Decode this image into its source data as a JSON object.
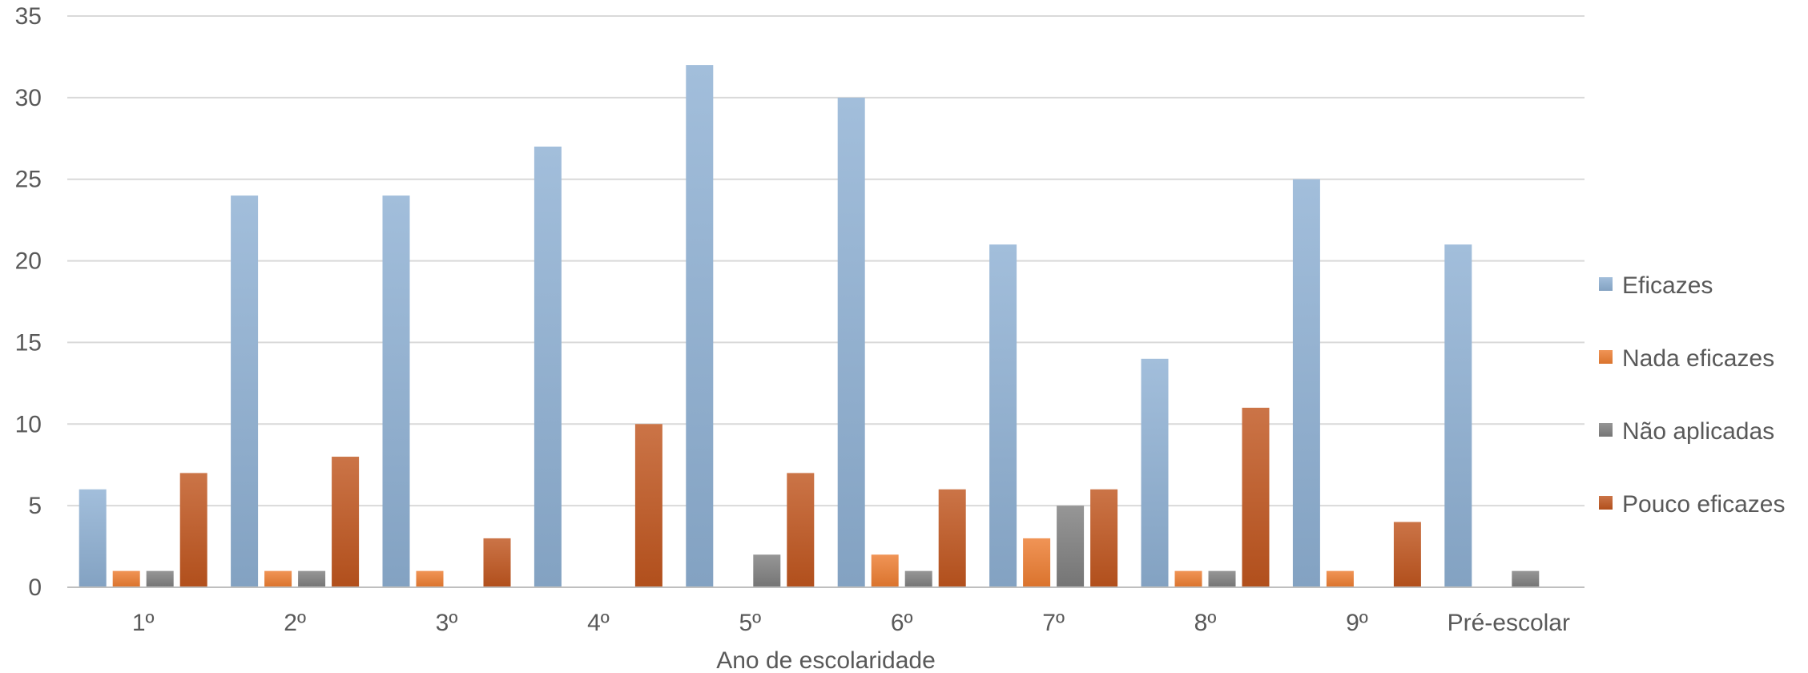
{
  "chart_data": {
    "type": "bar",
    "title": "",
    "xlabel": "Ano de escolaridade",
    "ylabel": "",
    "ylim": [
      0,
      35
    ],
    "yticks": [
      0,
      5,
      10,
      15,
      20,
      25,
      30,
      35
    ],
    "grid": true,
    "legend_position": "right",
    "categories": [
      "1º",
      "2º",
      "3º",
      "4º",
      "5º",
      "6º",
      "7º",
      "8º",
      "9º",
      "Pré-escolar"
    ],
    "series": [
      {
        "name": "Eficazes",
        "color": "#8EB0D3",
        "values": [
          6,
          24,
          24,
          27,
          32,
          30,
          21,
          14,
          25,
          21
        ]
      },
      {
        "name": "Nada eficazes",
        "color": "#ED7D31",
        "values": [
          1,
          1,
          1,
          0,
          0,
          2,
          3,
          1,
          1,
          0
        ]
      },
      {
        "name": "Não aplicadas",
        "color": "#7F7F7F",
        "values": [
          1,
          1,
          0,
          0,
          2,
          1,
          5,
          1,
          0,
          1
        ]
      },
      {
        "name": "Pouco eficazes",
        "color": "#C0561E",
        "values": [
          7,
          8,
          3,
          10,
          7,
          6,
          6,
          11,
          4,
          0
        ]
      }
    ]
  }
}
